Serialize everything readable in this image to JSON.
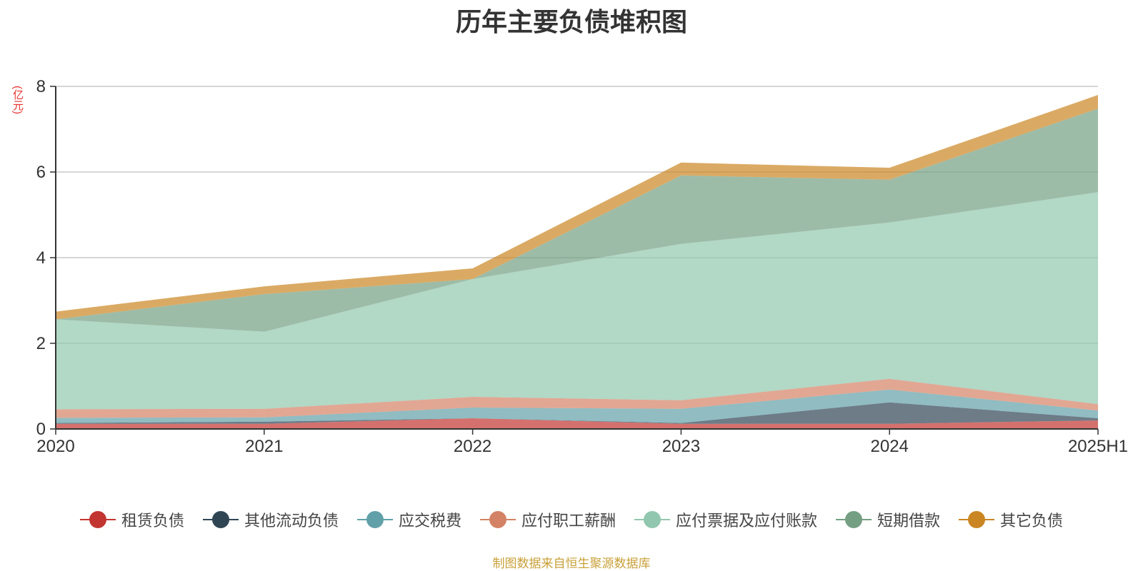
{
  "chart_data": {
    "type": "area",
    "stacked": true,
    "title": "历年主要负债堆积图",
    "unit_label": "(亿元)",
    "categories": [
      "2020",
      "2021",
      "2022",
      "2023",
      "2024",
      "2025H1"
    ],
    "y_ticks": [
      "0",
      "2",
      "4",
      "6",
      "8"
    ],
    "ylim": [
      0,
      8
    ],
    "grid": true,
    "legend_position": "bottom",
    "series": [
      {
        "name": "租赁负债",
        "color": "#c23531",
        "values": [
          0.12,
          0.12,
          0.25,
          0.12,
          0.12,
          0.2
        ]
      },
      {
        "name": "其他流动负债",
        "color": "#2f4554",
        "values": [
          0.02,
          0.05,
          0.0,
          0.02,
          0.5,
          0.05
        ]
      },
      {
        "name": "应交税费",
        "color": "#61a0a8",
        "values": [
          0.12,
          0.1,
          0.25,
          0.33,
          0.3,
          0.18
        ]
      },
      {
        "name": "应付职工薪酬",
        "color": "#d48265",
        "values": [
          0.2,
          0.2,
          0.25,
          0.2,
          0.25,
          0.15
        ]
      },
      {
        "name": "应付票据及应付账款",
        "color": "#91c7ae",
        "values": [
          2.1,
          1.8,
          2.75,
          3.65,
          3.65,
          4.95
        ]
      },
      {
        "name": "短期借款",
        "color": "#749f83",
        "values": [
          0.0,
          0.88,
          0.0,
          1.6,
          1.0,
          1.95
        ]
      },
      {
        "name": "其它负债",
        "color": "#ca8622",
        "values": [
          0.18,
          0.18,
          0.25,
          0.3,
          0.28,
          0.32
        ]
      }
    ]
  },
  "footer": {
    "source": "制图数据来自恒生聚源数据库"
  }
}
